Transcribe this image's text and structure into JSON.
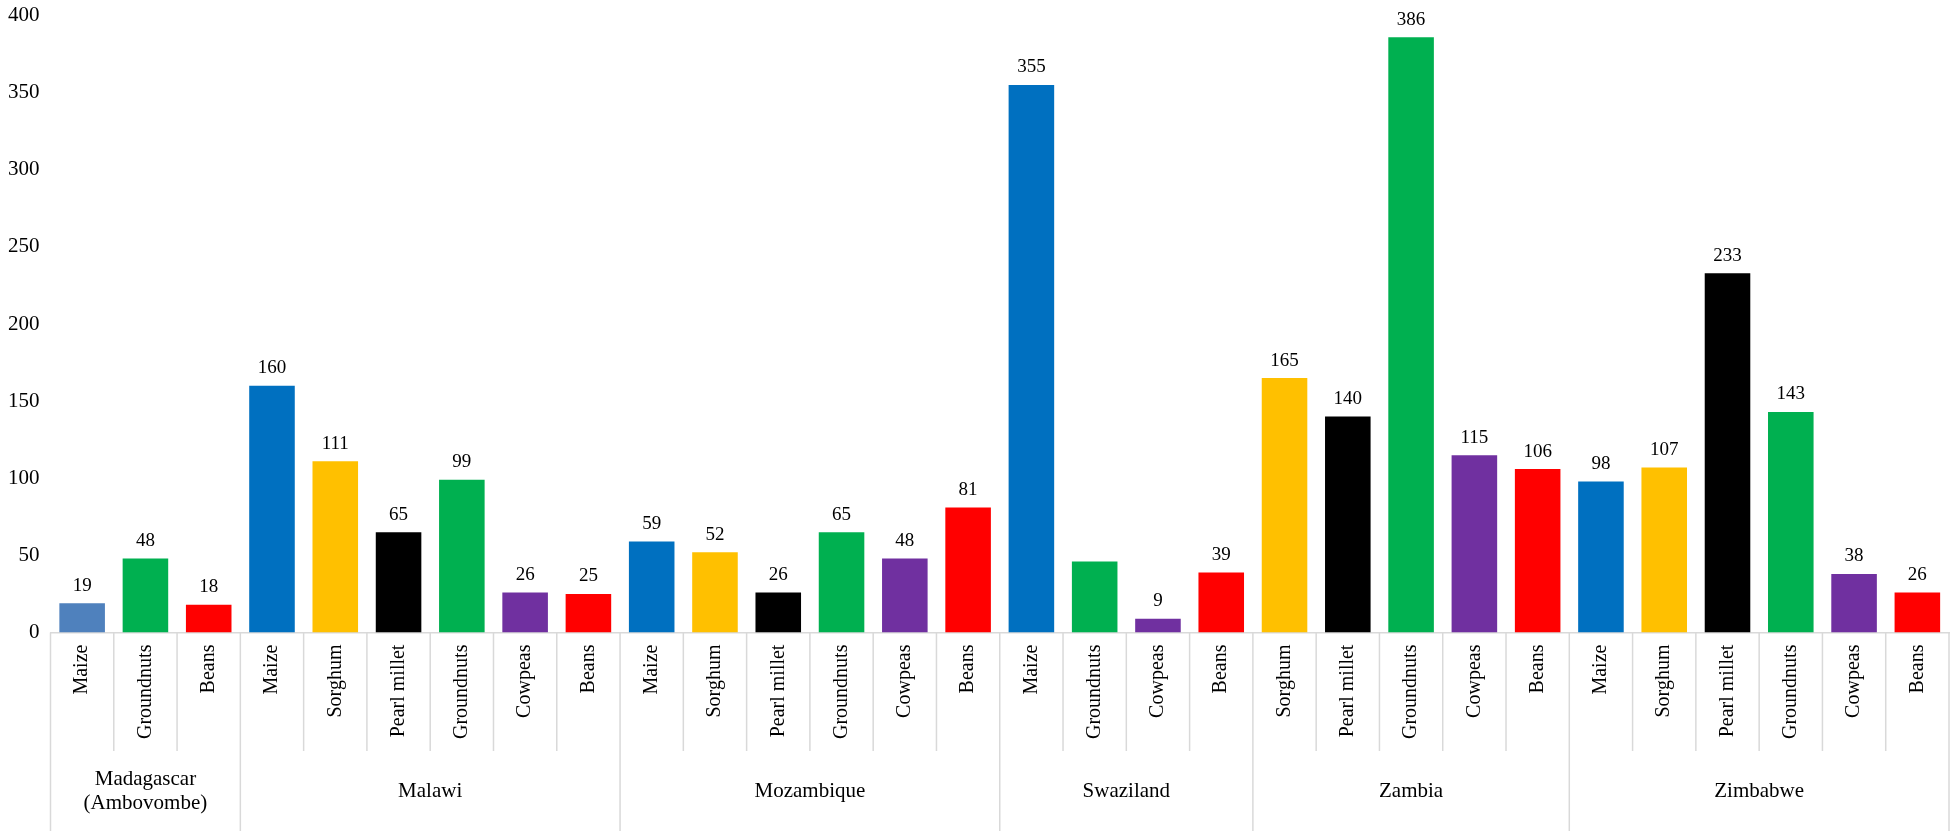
{
  "chart_data": {
    "type": "bar",
    "categories": [
      "Maize",
      "Groundnuts",
      "Beans",
      "Maize",
      "Sorghum",
      "Pearl millet",
      "Groundnuts",
      "Cowpeas",
      "Beans",
      "Maize",
      "Sorghum",
      "Pearl millet",
      "Groundnuts",
      "Cowpeas",
      "Beans",
      "Maize",
      "Groundnuts",
      "Cowpeas",
      "Beans",
      "Sorghum",
      "Pearl millet",
      "Groundnuts",
      "Cowpeas",
      "Beans",
      "Maize",
      "Sorghum",
      "Pearl millet",
      "Groundnuts",
      "Cowpeas",
      "Beans"
    ],
    "values": [
      19,
      48,
      18,
      160,
      111,
      65,
      99,
      26,
      25,
      59,
      52,
      26,
      65,
      48,
      81,
      355,
      46,
      9,
      39,
      165,
      140,
      386,
      115,
      106,
      98,
      107,
      233,
      143,
      38,
      26
    ],
    "value_labels": [
      "19",
      "48",
      "18",
      "160",
      "111",
      "65",
      "99",
      "26",
      "25",
      "59",
      "52",
      "26",
      "65",
      "48",
      "81",
      "355",
      null,
      "9",
      "39",
      "165",
      "140",
      "386",
      "115",
      "106",
      "98",
      "107",
      "233",
      "143",
      "38",
      "26"
    ],
    "colors": [
      "#4f81bd",
      "#00b050",
      "#ff0000",
      "#0070c0",
      "#ffc000",
      "#000000",
      "#00b050",
      "#7030a0",
      "#ff0000",
      "#0070c0",
      "#ffc000",
      "#000000",
      "#00b050",
      "#7030a0",
      "#ff0000",
      "#0070c0",
      "#00b050",
      "#7030a0",
      "#ff0000",
      "#ffc000",
      "#000000",
      "#00b050",
      "#7030a0",
      "#ff0000",
      "#0070c0",
      "#ffc000",
      "#000000",
      "#00b050",
      "#7030a0",
      "#ff0000"
    ],
    "ylim": [
      0,
      400
    ],
    "yticks": [
      0,
      50,
      100,
      150,
      200,
      250,
      300,
      350,
      400
    ],
    "annotations": [
      "Madagascar (Ambovombe)",
      "Malawi",
      "Mozambique",
      "Swaziland",
      "Zambia",
      "Zimbabwe"
    ]
  }
}
